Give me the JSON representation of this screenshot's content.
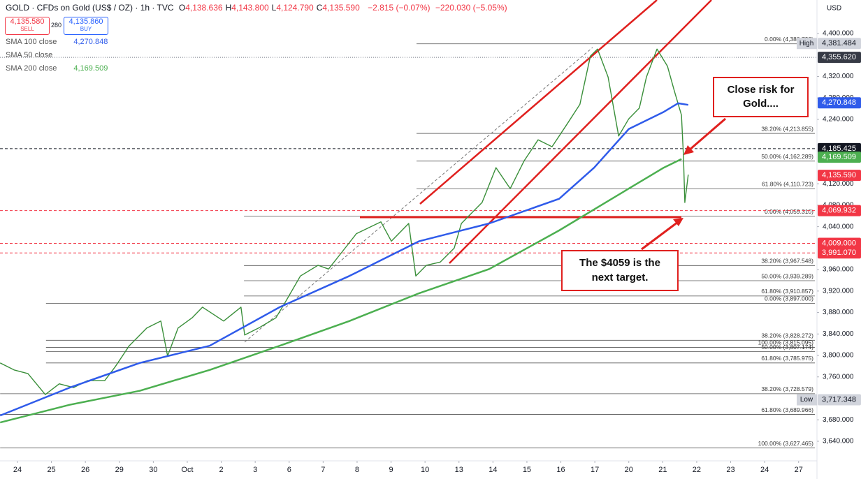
{
  "header": {
    "title": "GOLD · CFDs on Gold (US$ / OZ) · 1h · TVC",
    "ohlc": [
      {
        "key": "O",
        "value": "4,138.636"
      },
      {
        "key": "H",
        "value": "4,143.800"
      },
      {
        "key": "L",
        "value": "4,124.790"
      },
      {
        "key": "C",
        "value": "4,135.590"
      }
    ],
    "change": "−2.815 (−0.07%)",
    "change_total": "−220.030 (−5.05%)",
    "sell": {
      "price": "4,135.580",
      "label": "SELL"
    },
    "spread": "280",
    "buy": {
      "price": "4,135.860",
      "label": "BUY"
    },
    "indicators": [
      {
        "name": "SMA 100 close",
        "value": "4,270.848",
        "color": "#2f5bea"
      },
      {
        "name": "SMA 50 close",
        "value": null,
        "color": "#9598a1"
      },
      {
        "name": "SMA 200 close",
        "value": "4,169.509",
        "color": "#4caf50"
      }
    ],
    "currency": "USD"
  },
  "chart_data": {
    "type": "line",
    "xlim": [
      -0.514,
      23.52
    ],
    "ylim": [
      3603.5,
      4462.5
    ],
    "xticks": [
      {
        "value": 0,
        "label": "24"
      },
      {
        "value": 1,
        "label": "25"
      },
      {
        "value": 2,
        "label": "26"
      },
      {
        "value": 3,
        "label": "29"
      },
      {
        "value": 4,
        "label": "30"
      },
      {
        "value": 5,
        "label": "Oct"
      },
      {
        "value": 6,
        "label": "2"
      },
      {
        "value": 7,
        "label": "3"
      },
      {
        "value": 8,
        "label": "6"
      },
      {
        "value": 9,
        "label": "7"
      },
      {
        "value": 10,
        "label": "8"
      },
      {
        "value": 11,
        "label": "9"
      },
      {
        "value": 12,
        "label": "10"
      },
      {
        "value": 13,
        "label": "13"
      },
      {
        "value": 14,
        "label": "14"
      },
      {
        "value": 15,
        "label": "15"
      },
      {
        "value": 16,
        "label": "16"
      },
      {
        "value": 17,
        "label": "17"
      },
      {
        "value": 18,
        "label": "20"
      },
      {
        "value": 19,
        "label": "21"
      },
      {
        "value": 20,
        "label": "22"
      },
      {
        "value": 21,
        "label": "23"
      },
      {
        "value": 22,
        "label": "24"
      },
      {
        "value": 23,
        "label": "27"
      }
    ],
    "yticks": [
      {
        "value": 4400,
        "label": "4,400.000"
      },
      {
        "value": 4320,
        "label": "4,320.000"
      },
      {
        "value": 4280,
        "label": "4,280.000"
      },
      {
        "value": 4240,
        "label": "4,240.000"
      },
      {
        "value": 4120,
        "label": "4,120.000"
      },
      {
        "value": 4080,
        "label": "4,080.000"
      },
      {
        "value": 4040,
        "label": "4,040.000"
      },
      {
        "value": 3960,
        "label": "3,960.000"
      },
      {
        "value": 3920,
        "label": "3,920.000"
      },
      {
        "value": 3880,
        "label": "3,880.000"
      },
      {
        "value": 3840,
        "label": "3,840.000"
      },
      {
        "value": 3800,
        "label": "3,800.000"
      },
      {
        "value": 3760,
        "label": "3,760.000"
      },
      {
        "value": 3680,
        "label": "3,680.000"
      },
      {
        "value": 3640,
        "label": "3,640.000"
      }
    ],
    "series": [
      {
        "color": "#3a8f3a",
        "x": [
          -0.51,
          -0.1,
          0.31,
          0.82,
          1.23,
          1.65,
          2.06,
          2.57,
          2.88,
          3.29,
          3.81,
          4.22,
          4.42,
          4.73,
          5.14,
          5.45,
          6.07,
          6.58,
          6.69,
          7.1,
          7.61,
          7.92,
          8.33,
          8.85,
          9.16,
          9.57,
          9.98,
          10.7,
          11.01,
          11.52,
          11.73,
          12.04,
          12.45,
          12.86,
          13.07,
          13.68,
          14.09,
          14.51,
          14.92,
          15.33,
          15.74,
          16.15,
          16.56,
          16.87,
          17.08,
          17.39,
          17.7,
          18.0,
          18.31,
          18.52,
          18.83,
          19.14,
          19.34,
          19.55,
          19.61,
          19.65,
          19.75
        ],
        "values": [
          3786,
          3773,
          3766,
          3727,
          3747,
          3740,
          3753,
          3753,
          3779,
          3818,
          3851,
          3864,
          3799,
          3851,
          3870,
          3890,
          3864,
          3890,
          3838,
          3851,
          3870,
          3903,
          3948,
          3968,
          3961,
          3994,
          4027,
          4049,
          4013,
          4046,
          3948,
          3968,
          3974,
          4000,
          4046,
          4085,
          4150,
          4111,
          4163,
          4202,
          4189,
          4228,
          4268,
          4358,
          4371,
          4319,
          4209,
          4241,
          4261,
          4319,
          4371,
          4339,
          4293,
          4248,
          4170,
          4085,
          4137
        ]
      },
      {
        "name": "SMA 100 close",
        "color": "#2f5bea",
        "x": [
          -0.51,
          1.54,
          3.6,
          5.66,
          7.72,
          9.77,
          11.83,
          13.89,
          15.95,
          16.98,
          18.0,
          19.03,
          19.45,
          19.75
        ],
        "values": [
          3688,
          3740,
          3786,
          3818,
          3890,
          3948,
          4013,
          4046,
          4092,
          4150,
          4222,
          4254,
          4270,
          4267
        ]
      },
      {
        "name": "SMA 200 close",
        "color": "#4caf50",
        "x": [
          -0.51,
          1.54,
          3.6,
          5.66,
          7.72,
          9.77,
          11.83,
          13.89,
          15.95,
          18.0,
          19.03,
          19.55
        ],
        "values": [
          3675,
          3708,
          3734,
          3773,
          3818,
          3864,
          3916,
          3961,
          4033,
          4111,
          4150,
          4166
        ]
      }
    ],
    "fib_levels": [
      {
        "label": "0.00% (4,380.790)",
        "value": 4380.79,
        "start": 11.75
      },
      {
        "label": "38.20% (4,213.855)",
        "value": 4213.855,
        "start": 11.75
      },
      {
        "label": "50.00% (4,162.289)",
        "value": 4162.289,
        "start": 11.75
      },
      {
        "label": "61.80% (4,110.723)",
        "value": 4110.723,
        "start": 11.75
      },
      {
        "label": "0.00% (4,059.310)",
        "value": 4059.31,
        "start": 6.67
      },
      {
        "label": "38.20% (3,967.548)",
        "value": 3967.548,
        "start": 6.67
      },
      {
        "label": "50.00% (3,939.289)",
        "value": 3939.289,
        "start": 6.67
      },
      {
        "label": "61.80% (3,910.857)",
        "value": 3910.857,
        "start": 6.67
      },
      {
        "label": "0.00% (3,897.000)",
        "value": 3897.0,
        "start": 0.84
      },
      {
        "label": "38.20% (3,828.272)",
        "value": 3828.272,
        "start": 0.84
      },
      {
        "label": "100.00% (3,815.095)",
        "value": 3815.095,
        "start": 0.84
      },
      {
        "label": "50.00% (3,807.174)",
        "value": 3807.174,
        "start": 0.84
      },
      {
        "label": "61.80% (3,785.975)",
        "value": 3785.975,
        "start": 0.84
      },
      {
        "label": "38.20% (3,728.579)",
        "value": 3728.579,
        "start": -0.51
      },
      {
        "label": "61.80% (3,689.966)",
        "value": 3689.966,
        "start": -0.51
      },
      {
        "label": "100.00% (3,627.465)",
        "value": 3627.465,
        "start": -0.51
      }
    ],
    "price_tags": [
      {
        "text": "High",
        "value": 4381.484,
        "value_label": "4,381.484",
        "color": "#d1d4dc",
        "text_color": "#131722"
      },
      {
        "value": 4355.62,
        "value_label": "4,355.620",
        "color": "#363a45",
        "text_color": "#ffffff",
        "line": "dotted"
      },
      {
        "value": 4270.848,
        "value_label": "4,270.848",
        "color": "#2f5bea",
        "text_color": "#ffffff"
      },
      {
        "value": 4185.425,
        "value_label": "4,185.425",
        "color": "#131722",
        "text_color": "#ffffff",
        "line": "dashed"
      },
      {
        "value": 4169.509,
        "value_label": "4,169.509",
        "color": "#4caf50",
        "text_color": "#ffffff"
      },
      {
        "value": 4135.59,
        "value_label": "4,135.590",
        "color": "#f23645",
        "text_color": "#ffffff"
      },
      {
        "value": 4069.932,
        "value_label": "4,069.932",
        "color": "#f23645",
        "text_color": "#ffffff",
        "line": "dashed"
      },
      {
        "value": 4009.0,
        "value_label": "4,009.000",
        "color": "#f23645",
        "text_color": "#ffffff",
        "line": "dashed"
      },
      {
        "value": 3991.07,
        "value_label": "3,991.070",
        "color": "#f23645",
        "text_color": "#ffffff",
        "line": "dashed"
      },
      {
        "text": "Low",
        "value": 3717.348,
        "value_label": "3,717.348",
        "color": "#d1d4dc",
        "text_color": "#131722"
      }
    ],
    "annotations": [
      "Close risk for Gold....",
      "The $4059 is the next target."
    ]
  }
}
